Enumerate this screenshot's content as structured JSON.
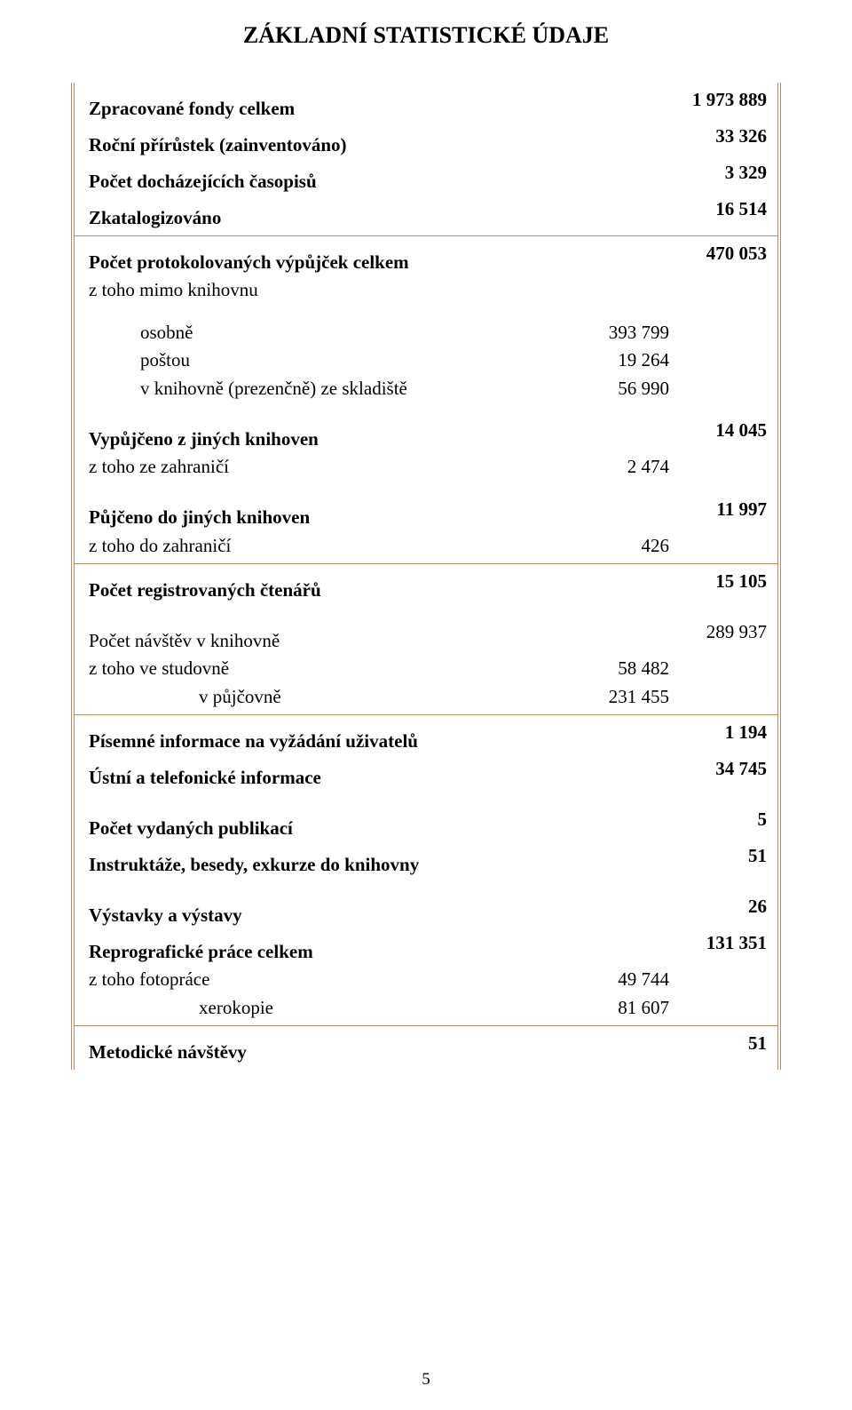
{
  "title": "ZÁKLADNÍ STATISTICKÉ ÚDAJE",
  "colors": {
    "border": "#c08860",
    "text": "#000000",
    "background": "#ffffff"
  },
  "page_number": "5",
  "blocks": [
    {
      "rows": [
        {
          "label": "Zpracované fondy celkem",
          "bold": true,
          "col1": "",
          "col2": "1 973 889"
        },
        {
          "label": "Roční přírůstek (zainventováno)",
          "bold": true,
          "col1": "",
          "col2": "33 326"
        },
        {
          "label": "Počet docházejících časopisů",
          "bold": true,
          "col1": "",
          "col2": "3 329"
        },
        {
          "label": "Zkatalogizováno",
          "bold": true,
          "col1": "",
          "col2": "16 514"
        }
      ]
    },
    {
      "rows": [
        {
          "label": "Počet protokolovaných výpůjček celkem",
          "label_parts": [
            "Počet protokolovaných výpůjček",
            " celkem"
          ],
          "bold": true,
          "col1": "",
          "col2": "470 053",
          "col2_bold": true
        },
        {
          "label": "z toho mimo knihovnu",
          "col1": "",
          "col2": ""
        },
        {
          "spacer": true
        },
        {
          "label": "osobně",
          "indent": 1,
          "col1": "393 799",
          "col2": ""
        },
        {
          "label": "poštou",
          "indent": 1,
          "col1": "19 264",
          "col2": ""
        },
        {
          "label": "v knihovně (prezenčně) ze skladiště",
          "indent": 1,
          "col1": "56 990",
          "col2": ""
        },
        {
          "spacer": true
        },
        {
          "label": "Vypůjčeno z jiných knihoven",
          "bold": true,
          "col1": "",
          "col2": "14 045"
        },
        {
          "label": "z toho ze zahraničí",
          "col1": "2 474",
          "col2": ""
        },
        {
          "spacer": true
        },
        {
          "label": "Půjčeno do jiných knihoven",
          "bold": true,
          "col1": "",
          "col2": "11 997"
        },
        {
          "label": "z toho do zahraničí",
          "col1": "426",
          "col2": ""
        }
      ]
    },
    {
      "rows": [
        {
          "label": "Počet registrovaných čtenářů",
          "bold": true,
          "col1": "",
          "col2": "15 105",
          "col2_bold": true
        },
        {
          "spacer": true
        },
        {
          "label": "Počet návštěv v knihovně",
          "col1": "",
          "col2": "289 937"
        },
        {
          "label": "z toho  ve studovně",
          "col1": "58 482",
          "col2": ""
        },
        {
          "label": "v půjčovně",
          "indent": 2,
          "col1": "231 455",
          "col2": ""
        }
      ]
    },
    {
      "rows": [
        {
          "label": "Písemné informace na vyžádání uživatelů",
          "bold": true,
          "col1": "",
          "col2": "1 194",
          "col2_bold": true
        },
        {
          "label": "Ústní a telefonické informace",
          "bold": true,
          "col1": "",
          "col2": "34 745",
          "col2_bold": true
        },
        {
          "spacer": true
        },
        {
          "label": "Počet vydaných publikací",
          "bold": true,
          "col1": "",
          "col2": "5",
          "col2_bold": true
        },
        {
          "label": "Instruktáže, besedy, exkurze do knihovny",
          "bold": true,
          "col1": "",
          "col2": "51",
          "col2_bold": true
        },
        {
          "spacer": true
        },
        {
          "label": "Výstavky a výstavy",
          "bold": true,
          "col1": "",
          "col2": "26",
          "col2_bold": true
        },
        {
          "label": "Reprografické práce celkem",
          "bold": true,
          "col1": "",
          "col2": "131 351",
          "col2_bold": true
        },
        {
          "label": "z toho  fotopráce",
          "col1": "49 744",
          "col2": ""
        },
        {
          "label": "xerokopie",
          "indent": 2,
          "col1": "81 607",
          "col2": ""
        }
      ]
    },
    {
      "rows": [
        {
          "label": "Metodické návštěvy",
          "bold": true,
          "col1": "",
          "col2": "51",
          "col2_bold": true
        }
      ]
    }
  ]
}
